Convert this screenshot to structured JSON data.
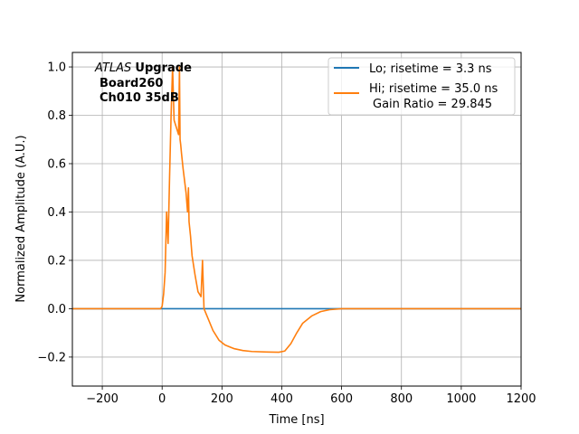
{
  "chart_data": {
    "type": "line",
    "title": "",
    "xlabel": "Time [ns]",
    "ylabel": "Normalized Amplitude (A.U.)",
    "xlim": [
      -300,
      1200
    ],
    "ylim": [
      -0.32,
      1.06
    ],
    "x_ticks": [
      -200,
      0,
      200,
      400,
      600,
      800,
      1000,
      1200
    ],
    "x_tick_labels": [
      "−200",
      "0",
      "200",
      "400",
      "600",
      "800",
      "1000",
      "1200"
    ],
    "y_ticks": [
      -0.2,
      0.0,
      0.2,
      0.4,
      0.6,
      0.8,
      1.0
    ],
    "y_tick_labels": [
      "−0.2",
      "0.0",
      "0.2",
      "0.4",
      "0.6",
      "0.8",
      "1.0"
    ],
    "grid": true,
    "legend_position": "top-right",
    "annotation": {
      "line1_italic": "ATLAS",
      "line1_bold": "Upgrade",
      "line2": "Board260",
      "line3": "Ch010 35dB"
    },
    "series": [
      {
        "name": "Lo; risetime = 3.3 ns",
        "color": "#1f77b4",
        "x": [
          -300,
          -200,
          -100,
          0,
          100,
          200,
          300,
          400,
          500,
          600,
          700,
          800,
          900,
          1000,
          1100,
          1200
        ],
        "y": [
          0.0,
          0.0,
          0.0,
          0.0,
          0.0,
          0.0,
          0.0,
          0.0,
          0.0,
          0.0,
          0.0,
          0.0,
          0.0,
          0.0,
          0.0,
          0.0
        ]
      },
      {
        "name": "Hi; risetime = 35.0 ns",
        "name_line2": "Gain Ratio = 29.845",
        "color": "#ff7f0e",
        "x": [
          -300,
          -100,
          -5,
          0,
          5,
          10,
          15,
          20,
          25,
          30,
          35,
          40,
          45,
          50,
          55,
          58,
          60,
          62,
          65,
          70,
          80,
          85,
          88,
          90,
          95,
          100,
          110,
          120,
          130,
          135,
          140,
          150,
          170,
          190,
          210,
          240,
          270,
          300,
          350,
          390,
          410,
          430,
          450,
          470,
          500,
          530,
          560,
          600,
          700,
          800,
          900,
          1000,
          1100,
          1200
        ],
        "y": [
          0.0,
          0.0,
          0.0,
          0.01,
          0.06,
          0.15,
          0.4,
          0.27,
          0.55,
          0.8,
          1.0,
          0.78,
          0.76,
          0.74,
          0.72,
          1.0,
          0.7,
          0.68,
          0.64,
          0.58,
          0.48,
          0.4,
          0.5,
          0.36,
          0.3,
          0.22,
          0.14,
          0.07,
          0.05,
          0.2,
          0.0,
          -0.03,
          -0.09,
          -0.13,
          -0.15,
          -0.165,
          -0.173,
          -0.177,
          -0.179,
          -0.18,
          -0.175,
          -0.145,
          -0.1,
          -0.06,
          -0.03,
          -0.012,
          -0.004,
          0.0,
          0.0,
          0.0,
          0.0,
          0.0,
          0.0,
          0.0
        ]
      }
    ]
  }
}
